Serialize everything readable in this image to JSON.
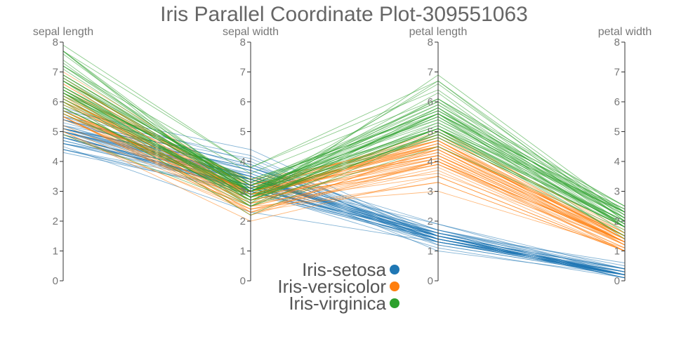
{
  "chart_data": {
    "type": "parallel-coordinates",
    "title": "Iris Parallel Coordinate Plot-309551063",
    "axes": [
      {
        "name": "sepal length",
        "range": [
          0,
          8
        ],
        "ticks": [
          0,
          1,
          2,
          3,
          4,
          5,
          6,
          7,
          8
        ]
      },
      {
        "name": "sepal width",
        "range": [
          0,
          8
        ],
        "ticks": [
          0,
          1,
          2,
          3,
          4,
          5,
          6,
          7,
          8
        ]
      },
      {
        "name": "petal length",
        "range": [
          0,
          8
        ],
        "ticks": [
          0,
          1,
          2,
          3,
          4,
          5,
          6,
          7,
          8
        ]
      },
      {
        "name": "petal width",
        "range": [
          0,
          8
        ],
        "ticks": [
          0,
          1,
          2,
          3,
          4,
          5,
          6,
          7,
          8
        ]
      }
    ],
    "legend_position": "bottom-center",
    "series": [
      {
        "name": "Iris-setosa",
        "color": "#1f77b4",
        "records": [
          [
            5.1,
            3.5,
            1.4,
            0.2
          ],
          [
            4.9,
            3.0,
            1.4,
            0.2
          ],
          [
            4.7,
            3.2,
            1.3,
            0.2
          ],
          [
            4.6,
            3.1,
            1.5,
            0.2
          ],
          [
            5.0,
            3.6,
            1.4,
            0.2
          ],
          [
            5.4,
            3.9,
            1.7,
            0.4
          ],
          [
            4.6,
            3.4,
            1.4,
            0.3
          ],
          [
            5.0,
            3.4,
            1.5,
            0.2
          ],
          [
            4.4,
            2.9,
            1.4,
            0.2
          ],
          [
            4.9,
            3.1,
            1.5,
            0.1
          ],
          [
            5.4,
            3.7,
            1.5,
            0.2
          ],
          [
            4.8,
            3.4,
            1.6,
            0.2
          ],
          [
            4.8,
            3.0,
            1.4,
            0.1
          ],
          [
            4.3,
            3.0,
            1.1,
            0.1
          ],
          [
            5.8,
            4.0,
            1.2,
            0.2
          ],
          [
            5.7,
            4.4,
            1.5,
            0.4
          ],
          [
            5.4,
            3.9,
            1.3,
            0.4
          ],
          [
            5.1,
            3.5,
            1.4,
            0.3
          ],
          [
            5.7,
            3.8,
            1.7,
            0.3
          ],
          [
            5.1,
            3.8,
            1.5,
            0.3
          ],
          [
            5.4,
            3.4,
            1.7,
            0.2
          ],
          [
            5.1,
            3.7,
            1.5,
            0.4
          ],
          [
            4.6,
            3.6,
            1.0,
            0.2
          ],
          [
            5.1,
            3.3,
            1.7,
            0.5
          ],
          [
            4.8,
            3.4,
            1.9,
            0.2
          ],
          [
            5.0,
            3.0,
            1.6,
            0.2
          ],
          [
            5.0,
            3.4,
            1.6,
            0.4
          ],
          [
            5.2,
            3.5,
            1.5,
            0.2
          ],
          [
            5.2,
            3.4,
            1.4,
            0.2
          ],
          [
            4.7,
            3.2,
            1.6,
            0.2
          ],
          [
            4.8,
            3.1,
            1.6,
            0.2
          ],
          [
            5.4,
            3.4,
            1.5,
            0.4
          ],
          [
            5.2,
            4.1,
            1.5,
            0.1
          ],
          [
            5.5,
            4.2,
            1.4,
            0.2
          ],
          [
            4.9,
            3.1,
            1.5,
            0.1
          ],
          [
            5.0,
            3.2,
            1.2,
            0.2
          ],
          [
            5.5,
            3.5,
            1.3,
            0.2
          ],
          [
            4.9,
            3.1,
            1.5,
            0.1
          ],
          [
            4.4,
            3.0,
            1.3,
            0.2
          ],
          [
            5.1,
            3.4,
            1.5,
            0.2
          ],
          [
            5.0,
            3.5,
            1.3,
            0.3
          ],
          [
            4.5,
            2.3,
            1.3,
            0.3
          ],
          [
            4.4,
            3.2,
            1.3,
            0.2
          ],
          [
            5.0,
            3.5,
            1.6,
            0.6
          ],
          [
            5.1,
            3.8,
            1.9,
            0.4
          ],
          [
            4.8,
            3.0,
            1.4,
            0.3
          ],
          [
            5.1,
            3.8,
            1.6,
            0.2
          ],
          [
            4.6,
            3.2,
            1.4,
            0.2
          ],
          [
            5.3,
            3.7,
            1.5,
            0.2
          ],
          [
            5.0,
            3.3,
            1.4,
            0.2
          ]
        ]
      },
      {
        "name": "Iris-versicolor",
        "color": "#ff7f0e",
        "records": [
          [
            7.0,
            3.2,
            4.7,
            1.4
          ],
          [
            6.4,
            3.2,
            4.5,
            1.5
          ],
          [
            6.9,
            3.1,
            4.9,
            1.5
          ],
          [
            5.5,
            2.3,
            4.0,
            1.3
          ],
          [
            6.5,
            2.8,
            4.6,
            1.5
          ],
          [
            5.7,
            2.8,
            4.5,
            1.3
          ],
          [
            6.3,
            3.3,
            4.7,
            1.6
          ],
          [
            4.9,
            2.4,
            3.3,
            1.0
          ],
          [
            6.6,
            2.9,
            4.6,
            1.3
          ],
          [
            5.2,
            2.7,
            3.9,
            1.4
          ],
          [
            5.0,
            2.0,
            3.5,
            1.0
          ],
          [
            5.9,
            3.0,
            4.2,
            1.5
          ],
          [
            6.0,
            2.2,
            4.0,
            1.0
          ],
          [
            6.1,
            2.9,
            4.7,
            1.4
          ],
          [
            5.6,
            2.9,
            3.6,
            1.3
          ],
          [
            6.7,
            3.1,
            4.4,
            1.4
          ],
          [
            5.6,
            3.0,
            4.5,
            1.5
          ],
          [
            5.8,
            2.7,
            4.1,
            1.0
          ],
          [
            6.2,
            2.2,
            4.5,
            1.5
          ],
          [
            5.6,
            2.5,
            3.9,
            1.1
          ],
          [
            5.9,
            3.2,
            4.8,
            1.8
          ],
          [
            6.1,
            2.8,
            4.0,
            1.3
          ],
          [
            6.3,
            2.5,
            4.9,
            1.5
          ],
          [
            6.1,
            2.8,
            4.7,
            1.2
          ],
          [
            6.4,
            2.9,
            4.3,
            1.3
          ],
          [
            6.6,
            3.0,
            4.4,
            1.4
          ],
          [
            6.8,
            2.8,
            4.8,
            1.4
          ],
          [
            6.7,
            3.0,
            5.0,
            1.7
          ],
          [
            6.0,
            2.9,
            4.5,
            1.5
          ],
          [
            5.7,
            2.6,
            3.5,
            1.0
          ],
          [
            5.5,
            2.4,
            3.8,
            1.1
          ],
          [
            5.5,
            2.4,
            3.7,
            1.0
          ],
          [
            5.8,
            2.7,
            3.9,
            1.2
          ],
          [
            6.0,
            2.7,
            5.1,
            1.6
          ],
          [
            5.4,
            3.0,
            4.5,
            1.5
          ],
          [
            6.0,
            3.4,
            4.5,
            1.6
          ],
          [
            6.7,
            3.1,
            4.7,
            1.5
          ],
          [
            6.3,
            2.3,
            4.4,
            1.3
          ],
          [
            5.6,
            3.0,
            4.1,
            1.3
          ],
          [
            5.5,
            2.5,
            4.0,
            1.3
          ],
          [
            5.5,
            2.6,
            4.4,
            1.2
          ],
          [
            6.1,
            3.0,
            4.6,
            1.4
          ],
          [
            5.8,
            2.6,
            4.0,
            1.2
          ],
          [
            5.0,
            2.3,
            3.3,
            1.0
          ],
          [
            5.6,
            2.7,
            4.2,
            1.3
          ],
          [
            5.7,
            3.0,
            4.2,
            1.2
          ],
          [
            5.7,
            2.9,
            4.2,
            1.3
          ],
          [
            6.2,
            2.9,
            4.3,
            1.3
          ],
          [
            5.1,
            2.5,
            3.0,
            1.1
          ],
          [
            5.7,
            2.8,
            4.1,
            1.3
          ]
        ]
      },
      {
        "name": "Iris-virginica",
        "color": "#2ca02c",
        "records": [
          [
            6.3,
            3.3,
            6.0,
            2.5
          ],
          [
            5.8,
            2.7,
            5.1,
            1.9
          ],
          [
            7.1,
            3.0,
            5.9,
            2.1
          ],
          [
            6.3,
            2.9,
            5.6,
            1.8
          ],
          [
            6.5,
            3.0,
            5.8,
            2.2
          ],
          [
            7.6,
            3.0,
            6.6,
            2.1
          ],
          [
            4.9,
            2.5,
            4.5,
            1.7
          ],
          [
            7.3,
            2.9,
            6.3,
            1.8
          ],
          [
            6.7,
            2.5,
            5.8,
            1.8
          ],
          [
            7.2,
            3.6,
            6.1,
            2.5
          ],
          [
            6.5,
            3.2,
            5.1,
            2.0
          ],
          [
            6.4,
            2.7,
            5.3,
            1.9
          ],
          [
            6.8,
            3.0,
            5.5,
            2.1
          ],
          [
            5.7,
            2.5,
            5.0,
            2.0
          ],
          [
            5.8,
            2.8,
            5.1,
            2.4
          ],
          [
            6.4,
            3.2,
            5.3,
            2.3
          ],
          [
            6.5,
            3.0,
            5.5,
            1.8
          ],
          [
            7.7,
            3.8,
            6.7,
            2.2
          ],
          [
            7.7,
            2.6,
            6.9,
            2.3
          ],
          [
            6.0,
            2.2,
            5.0,
            1.5
          ],
          [
            6.9,
            3.2,
            5.7,
            2.3
          ],
          [
            5.6,
            2.8,
            4.9,
            2.0
          ],
          [
            7.7,
            2.8,
            6.7,
            2.0
          ],
          [
            6.3,
            2.7,
            4.9,
            1.8
          ],
          [
            6.7,
            3.3,
            5.7,
            2.1
          ],
          [
            7.2,
            3.2,
            6.0,
            1.8
          ],
          [
            6.2,
            2.8,
            4.8,
            1.8
          ],
          [
            6.1,
            3.0,
            4.9,
            1.8
          ],
          [
            6.4,
            2.8,
            5.6,
            2.1
          ],
          [
            7.2,
            3.0,
            5.8,
            1.6
          ],
          [
            7.4,
            2.8,
            6.1,
            1.9
          ],
          [
            7.9,
            3.8,
            6.4,
            2.0
          ],
          [
            6.4,
            2.8,
            5.6,
            2.2
          ],
          [
            6.3,
            2.8,
            5.1,
            1.5
          ],
          [
            6.1,
            2.6,
            5.6,
            1.4
          ],
          [
            7.7,
            3.0,
            6.1,
            2.3
          ],
          [
            6.3,
            3.4,
            5.6,
            2.4
          ],
          [
            6.4,
            3.1,
            5.5,
            1.8
          ],
          [
            6.0,
            3.0,
            4.8,
            1.8
          ],
          [
            6.9,
            3.1,
            5.4,
            2.1
          ],
          [
            6.7,
            3.1,
            5.6,
            2.4
          ],
          [
            6.9,
            3.1,
            5.1,
            2.3
          ],
          [
            5.8,
            2.7,
            5.1,
            1.9
          ],
          [
            6.8,
            3.2,
            5.9,
            2.3
          ],
          [
            6.7,
            3.3,
            5.7,
            2.5
          ],
          [
            6.7,
            3.0,
            5.2,
            2.3
          ],
          [
            6.3,
            2.5,
            5.0,
            1.9
          ],
          [
            6.5,
            3.0,
            5.2,
            2.0
          ],
          [
            6.2,
            3.4,
            5.4,
            2.3
          ],
          [
            5.9,
            3.0,
            5.1,
            1.8
          ]
        ]
      }
    ]
  }
}
